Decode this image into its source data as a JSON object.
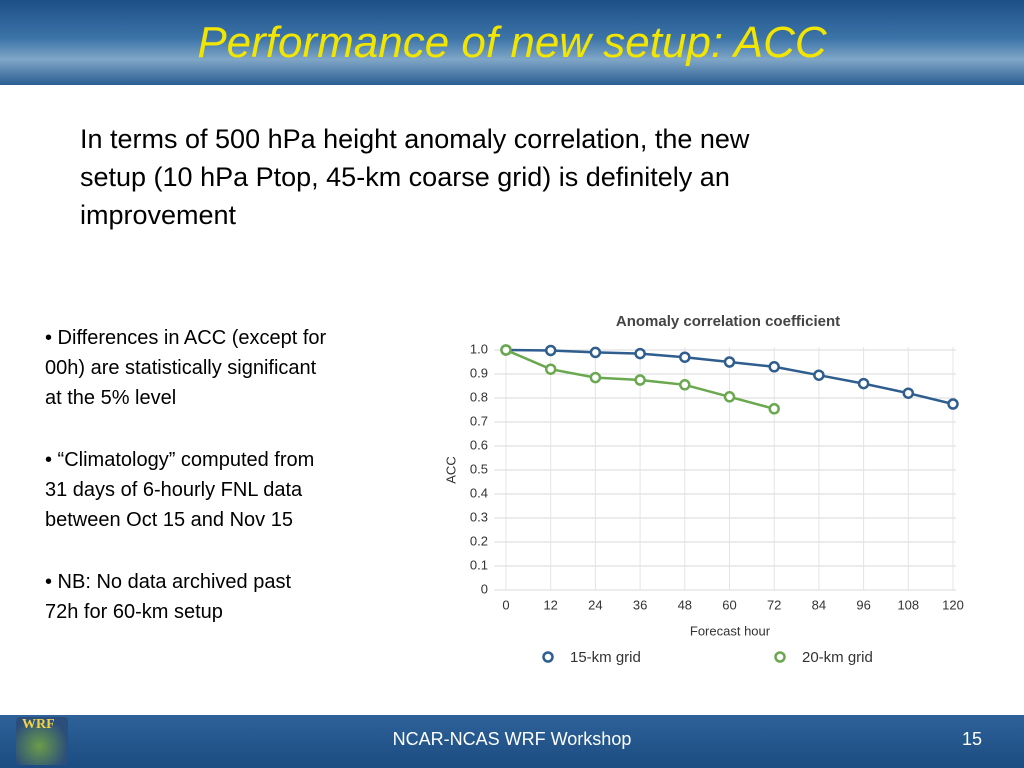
{
  "header": {
    "title": "Performance of new setup: ACC"
  },
  "intro": [
    "In terms of 500 hPa height anomaly correlation, the new",
    "setup (10 hPa Ptop, 45-km coarse grid) is definitely an",
    "improvement"
  ],
  "bullets": [
    [
      "• Differences in ACC (except for",
      "00h) are statistically significant",
      "at the 5% level"
    ],
    [
      "• “Climatology” computed from",
      "31 days of 6-hourly FNL data",
      "between Oct 15 and Nov 15"
    ],
    [
      "• NB: No data archived past",
      "72h for 60-km setup"
    ]
  ],
  "footer": {
    "text": "NCAR-NCAS WRF Workshop",
    "page": "15",
    "logo": "WRF"
  },
  "chart_data": {
    "type": "line",
    "title": "Anomaly correlation coefficient",
    "x_label": "Forecast hour",
    "y_label": "ACC",
    "x": [
      0,
      12,
      24,
      36,
      48,
      60,
      72,
      84,
      96,
      108,
      120
    ],
    "series": [
      {
        "name": "15-km grid",
        "color": "#2e5d8e",
        "values": [
          1.0,
          0.998,
          0.99,
          0.985,
          0.97,
          0.95,
          0.93,
          0.895,
          0.86,
          0.82,
          0.775
        ]
      },
      {
        "name": "20-km grid",
        "color": "#6aa84f",
        "values": [
          1.0,
          0.92,
          0.885,
          0.875,
          0.855,
          0.805,
          0.755,
          null,
          null,
          null,
          null
        ]
      }
    ],
    "xlim": [
      0,
      120
    ],
    "xticks": [
      0,
      12,
      24,
      36,
      48,
      60,
      72,
      84,
      96,
      108,
      120
    ],
    "ylim": [
      0,
      1.0
    ],
    "yticks": [
      0,
      0.1,
      0.2,
      0.3,
      0.4,
      0.5,
      0.6,
      0.7,
      0.8,
      0.9,
      {
        "value": 1.0,
        "label": "1.0"
      }
    ],
    "grid": true,
    "legend": "bottom"
  }
}
